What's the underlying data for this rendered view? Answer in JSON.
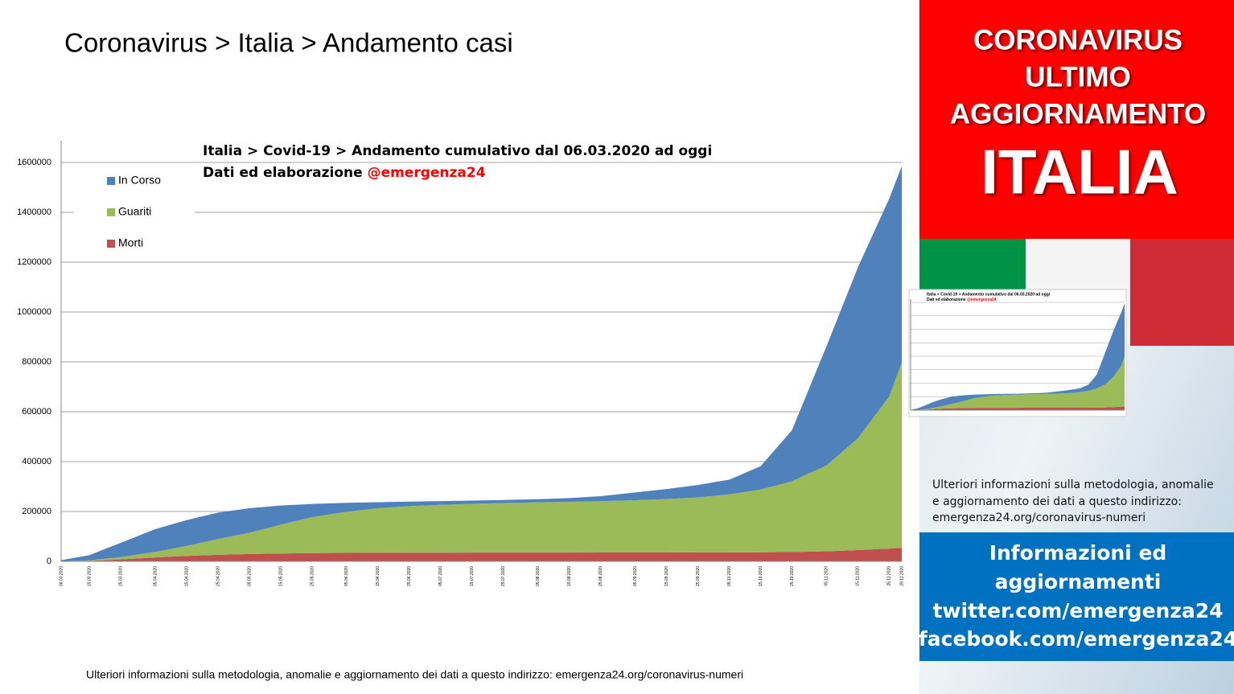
{
  "header": {
    "title": "Coronavirus > Italia > Andamento casi"
  },
  "chart_data": {
    "type": "stacked_area",
    "title": "Italia > Covid-19 > Andamento cumulativo dal 06.03.2020 ad oggi",
    "subtitle": "Dati ed elaborazione",
    "subtitle_handle": "@emergenza24",
    "categories": [
      "06.03.2020",
      "15.03.2020",
      "25.03.2020",
      "05.04.2020",
      "15.04.2020",
      "25.04.2020",
      "05.05.2020",
      "15.05.2020",
      "25.05.2020",
      "05.06.2020",
      "15.06.2020",
      "25.06.2020",
      "05.07.2020",
      "15.07.2020",
      "25.07.2020",
      "05.08.2020",
      "15.08.2020",
      "25.08.2020",
      "05.09.2020",
      "15.09.2020",
      "25.09.2020",
      "05.10.2020",
      "15.10.2020",
      "25.10.2020",
      "05.11.2020",
      "15.11.2020",
      "25.11.2020",
      "29.11.2020"
    ],
    "series": [
      {
        "name": "In Corso",
        "color": "#4f81bd",
        "values": [
          3916,
          20603,
          57521,
          91246,
          103346,
          105847,
          98467,
          76987,
          52623,
          35679,
          24393,
          18303,
          14806,
          13278,
          12255,
          12691,
          14878,
          20067,
          31194,
          40407,
          49752,
          58903,
          93769,
          204877,
          477948,
          685080,
          793830,
          787647
        ]
      },
      {
        "name": "Guariti",
        "color": "#9bbb59",
        "values": [
          523,
          2335,
          9362,
          21815,
          40164,
          63120,
          85231,
          115288,
          144658,
          165078,
          178526,
          186725,
          191944,
          195441,
          198756,
          201323,
          203326,
          205662,
          209610,
          213950,
          220665,
          232681,
          251461,
          283567,
          344541,
          448220,
          609886,
          743168
        ]
      },
      {
        "name": "Morti",
        "color": "#c0504d",
        "values": [
          197,
          1809,
          7503,
          15887,
          21645,
          26384,
          29315,
          31610,
          32877,
          33774,
          34371,
          34678,
          34861,
          35017,
          35107,
          35190,
          35234,
          35445,
          35534,
          35633,
          35818,
          36002,
          36372,
          37338,
          40192,
          45229,
          51306,
          54363
        ]
      }
    ],
    "ylim": [
      0,
      1600000
    ],
    "yticks": [
      0,
      200000,
      400000,
      600000,
      800000,
      1000000,
      1200000,
      1400000,
      1600000
    ],
    "grid": true,
    "legend": "top-left"
  },
  "footer": {
    "note": "Ulteriori informazioni sulla metodologia, anomalie e aggiornamento dei dati a questo indirizzo: emergenza24.org/coronavirus-numeri"
  },
  "panel": {
    "banner": [
      "CORONAVIRUS",
      "ULTIMO",
      "AGGIORNAMENTO"
    ],
    "country": "ITALIA",
    "note": [
      "Ulteriori informazioni sulla metodologia, anomalie",
      "e aggiornamento dei dati a questo indirizzo:",
      "emergenza24.org/coronavirus-numeri"
    ],
    "info": [
      "Informazioni ed",
      "aggiornamenti",
      "twitter.com/emergenza24",
      "facebook.com/emergenza24"
    ]
  }
}
